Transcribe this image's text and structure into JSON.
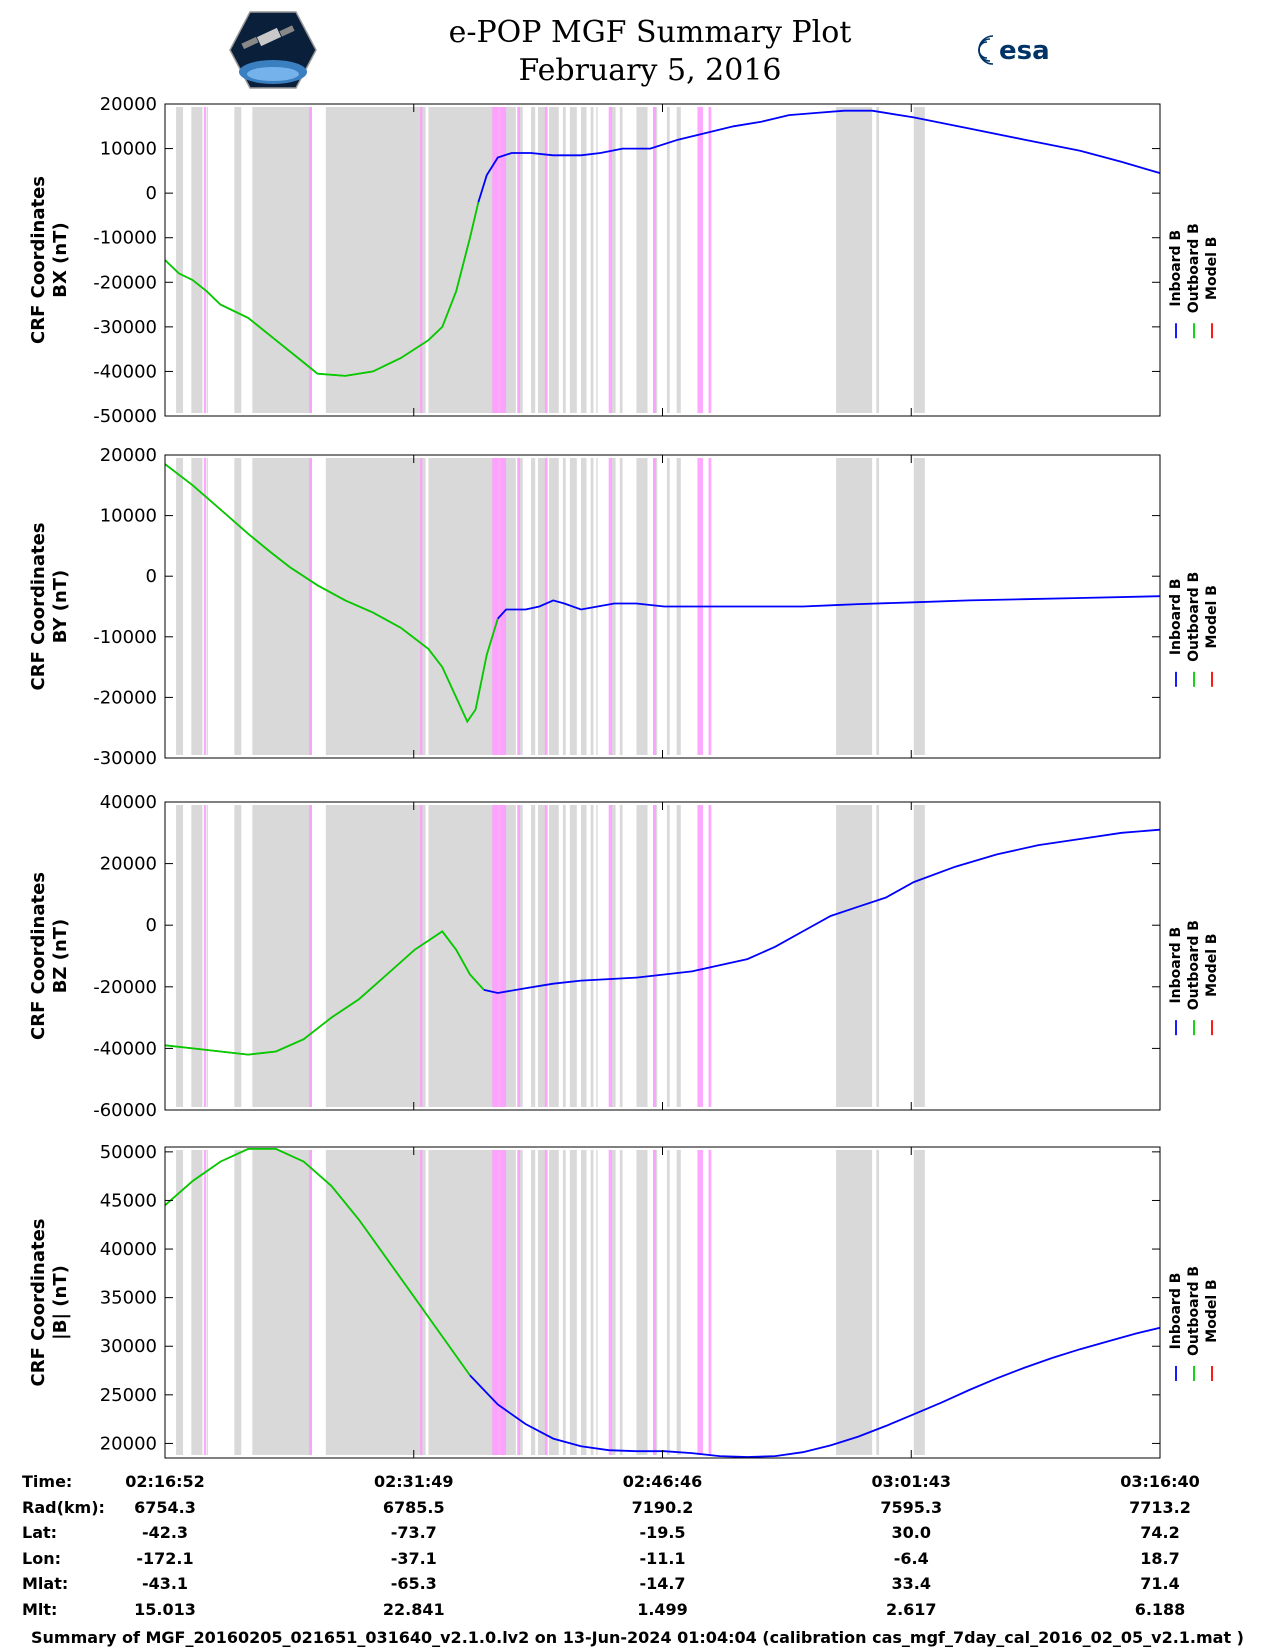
{
  "header": {
    "title_line1": "e-POP MGF Summary Plot",
    "title_line2": "February 5, 2016",
    "left_logo_icon": "epop-satellite-hexagon-icon",
    "right_logo_icon": "esa-logo-icon",
    "right_logo_text": "esa"
  },
  "colors": {
    "inboard": "#0000ff",
    "outboard": "#00cc00",
    "model": "#ff0000",
    "gray_band": "#d9d9d9",
    "pink_band": "#ff99ff"
  },
  "chart_data": [
    {
      "type": "line",
      "ylabel_line1": "CRF Coordinates",
      "ylabel_line2": "BX (nT)",
      "ylim": [
        -50000,
        20000
      ],
      "yticks": [
        20000,
        10000,
        0,
        -10000,
        -20000,
        -30000,
        -40000,
        -50000
      ],
      "xlim": [
        0,
        3588
      ],
      "legend": [
        "Inboard B",
        "Outboard B",
        "Model B"
      ],
      "legend_placement": "right",
      "inboard_from": 1130,
      "points": [
        [
          0,
          -15000
        ],
        [
          50,
          -18000
        ],
        [
          100,
          -19500
        ],
        [
          150,
          -22000
        ],
        [
          200,
          -25000
        ],
        [
          300,
          -28000
        ],
        [
          400,
          -33000
        ],
        [
          500,
          -38000
        ],
        [
          550,
          -40500
        ],
        [
          650,
          -41000
        ],
        [
          750,
          -40000
        ],
        [
          850,
          -37000
        ],
        [
          950,
          -33000
        ],
        [
          1000,
          -30000
        ],
        [
          1050,
          -22000
        ],
        [
          1100,
          -10000
        ],
        [
          1130,
          -2000
        ],
        [
          1160,
          4000
        ],
        [
          1200,
          8000
        ],
        [
          1250,
          9000
        ],
        [
          1320,
          9000
        ],
        [
          1400,
          8500
        ],
        [
          1500,
          8500
        ],
        [
          1570,
          9000
        ],
        [
          1650,
          10000
        ],
        [
          1750,
          10000
        ],
        [
          1850,
          12000
        ],
        [
          1950,
          13500
        ],
        [
          2050,
          15000
        ],
        [
          2150,
          16000
        ],
        [
          2250,
          17500
        ],
        [
          2350,
          18000
        ],
        [
          2450,
          18500
        ],
        [
          2550,
          18500
        ],
        [
          2700,
          17000
        ],
        [
          2900,
          14500
        ],
        [
          3100,
          12000
        ],
        [
          3300,
          9500
        ],
        [
          3450,
          7000
        ],
        [
          3588,
          4500
        ]
      ]
    },
    {
      "type": "line",
      "ylabel_line1": "CRF Coordinates",
      "ylabel_line2": "BY (nT)",
      "ylim": [
        -30000,
        20000
      ],
      "yticks": [
        20000,
        10000,
        0,
        -10000,
        -20000,
        -30000
      ],
      "xlim": [
        0,
        3588
      ],
      "legend": [
        "Inboard B",
        "Outboard B",
        "Model B"
      ],
      "legend_placement": "right",
      "inboard_from": 1200,
      "points": [
        [
          0,
          18500
        ],
        [
          100,
          15000
        ],
        [
          200,
          11000
        ],
        [
          300,
          7000
        ],
        [
          380,
          4000
        ],
        [
          450,
          1500
        ],
        [
          550,
          -1500
        ],
        [
          650,
          -4000
        ],
        [
          750,
          -6000
        ],
        [
          850,
          -8500
        ],
        [
          950,
          -12000
        ],
        [
          1000,
          -15000
        ],
        [
          1050,
          -20000
        ],
        [
          1090,
          -24000
        ],
        [
          1120,
          -22000
        ],
        [
          1160,
          -13000
        ],
        [
          1200,
          -7000
        ],
        [
          1230,
          -5500
        ],
        [
          1300,
          -5500
        ],
        [
          1350,
          -5000
        ],
        [
          1400,
          -4000
        ],
        [
          1440,
          -4500
        ],
        [
          1500,
          -5500
        ],
        [
          1560,
          -5000
        ],
        [
          1620,
          -4500
        ],
        [
          1700,
          -4500
        ],
        [
          1800,
          -5000
        ],
        [
          1900,
          -5000
        ],
        [
          2000,
          -5000
        ],
        [
          2100,
          -5000
        ],
        [
          2200,
          -5000
        ],
        [
          2300,
          -5000
        ],
        [
          2400,
          -4800
        ],
        [
          2500,
          -4600
        ],
        [
          2700,
          -4300
        ],
        [
          2900,
          -4000
        ],
        [
          3100,
          -3800
        ],
        [
          3300,
          -3600
        ],
        [
          3588,
          -3300
        ]
      ]
    },
    {
      "type": "line",
      "ylabel_line1": "CRF Coordinates",
      "ylabel_line2": "BZ (nT)",
      "ylim": [
        -60000,
        40000
      ],
      "yticks": [
        40000,
        20000,
        0,
        -20000,
        -40000,
        -60000
      ],
      "xlim": [
        0,
        3588
      ],
      "legend": [
        "Inboard B",
        "Outboard B",
        "Model B"
      ],
      "legend_placement": "right",
      "inboard_from": 1150,
      "points": [
        [
          0,
          -39000
        ],
        [
          100,
          -40000
        ],
        [
          200,
          -41000
        ],
        [
          300,
          -42000
        ],
        [
          400,
          -41000
        ],
        [
          500,
          -37000
        ],
        [
          600,
          -30000
        ],
        [
          700,
          -24000
        ],
        [
          800,
          -16000
        ],
        [
          900,
          -8000
        ],
        [
          950,
          -5000
        ],
        [
          1000,
          -2000
        ],
        [
          1050,
          -8000
        ],
        [
          1100,
          -16000
        ],
        [
          1150,
          -21000
        ],
        [
          1200,
          -22000
        ],
        [
          1300,
          -20500
        ],
        [
          1400,
          -19000
        ],
        [
          1500,
          -18000
        ],
        [
          1600,
          -17500
        ],
        [
          1700,
          -17000
        ],
        [
          1800,
          -16000
        ],
        [
          1900,
          -15000
        ],
        [
          2000,
          -13000
        ],
        [
          2100,
          -11000
        ],
        [
          2200,
          -7000
        ],
        [
          2300,
          -2000
        ],
        [
          2400,
          3000
        ],
        [
          2500,
          6000
        ],
        [
          2600,
          9000
        ],
        [
          2700,
          14000
        ],
        [
          2850,
          19000
        ],
        [
          3000,
          23000
        ],
        [
          3150,
          26000
        ],
        [
          3300,
          28000
        ],
        [
          3450,
          30000
        ],
        [
          3588,
          31000
        ]
      ]
    },
    {
      "type": "line",
      "ylabel_line1": "CRF Coordinates",
      "ylabel_line2": "|B| (nT)",
      "ylim": [
        18500,
        50500
      ],
      "yticks": [
        50000,
        45000,
        40000,
        35000,
        30000,
        25000,
        20000
      ],
      "xlim": [
        0,
        3588
      ],
      "legend": [
        "Inboard B",
        "Outboard B",
        "Model B"
      ],
      "legend_placement": "right",
      "inboard_from": 1030,
      "points": [
        [
          0,
          44500
        ],
        [
          100,
          47000
        ],
        [
          200,
          49000
        ],
        [
          300,
          50300
        ],
        [
          400,
          50300
        ],
        [
          500,
          49000
        ],
        [
          600,
          46500
        ],
        [
          700,
          43000
        ],
        [
          800,
          39000
        ],
        [
          900,
          35000
        ],
        [
          1000,
          31000
        ],
        [
          1100,
          27000
        ],
        [
          1200,
          24000
        ],
        [
          1300,
          22000
        ],
        [
          1400,
          20500
        ],
        [
          1500,
          19700
        ],
        [
          1600,
          19300
        ],
        [
          1700,
          19200
        ],
        [
          1800,
          19200
        ],
        [
          1900,
          19000
        ],
        [
          2000,
          18700
        ],
        [
          2100,
          18600
        ],
        [
          2200,
          18700
        ],
        [
          2300,
          19100
        ],
        [
          2400,
          19800
        ],
        [
          2500,
          20700
        ],
        [
          2600,
          21800
        ],
        [
          2700,
          23000
        ],
        [
          2800,
          24200
        ],
        [
          2900,
          25500
        ],
        [
          3000,
          26700
        ],
        [
          3100,
          27800
        ],
        [
          3200,
          28800
        ],
        [
          3300,
          29700
        ],
        [
          3400,
          30500
        ],
        [
          3500,
          31300
        ],
        [
          3588,
          31900
        ]
      ]
    }
  ],
  "bands": {
    "gray": [
      [
        40,
        65
      ],
      [
        95,
        135
      ],
      [
        150,
        155
      ],
      [
        250,
        275
      ],
      [
        315,
        530
      ],
      [
        580,
        940
      ],
      [
        950,
        1200
      ],
      [
        1210,
        1265
      ],
      [
        1275,
        1290
      ],
      [
        1320,
        1335
      ],
      [
        1345,
        1375
      ],
      [
        1385,
        1420
      ],
      [
        1435,
        1445
      ],
      [
        1460,
        1485
      ],
      [
        1500,
        1520
      ],
      [
        1535,
        1545
      ],
      [
        1555,
        1560
      ],
      [
        1610,
        1625
      ],
      [
        1640,
        1650
      ],
      [
        1700,
        1740
      ],
      [
        1760,
        1775
      ],
      [
        1810,
        1820
      ],
      [
        1845,
        1860
      ],
      [
        2420,
        2550
      ],
      [
        2565,
        2575
      ],
      [
        2700,
        2740
      ]
    ],
    "pink": [
      [
        140,
        148
      ],
      [
        520,
        530
      ],
      [
        920,
        928
      ],
      [
        1180,
        1230
      ],
      [
        1270,
        1280
      ],
      [
        1370,
        1380
      ],
      [
        1600,
        1612
      ],
      [
        1760,
        1770
      ],
      [
        1920,
        1940
      ],
      [
        1960,
        1970
      ]
    ]
  },
  "time_axis": {
    "tick_positions": [
      0,
      897,
      1794,
      2691,
      3588
    ],
    "rows": [
      {
        "label": "Time:",
        "values": [
          "02:16:52",
          "02:31:49",
          "02:46:46",
          "03:01:43",
          "03:16:40"
        ]
      },
      {
        "label": "Rad(km):",
        "values": [
          "6754.3",
          "6785.5",
          "7190.2",
          "7595.3",
          "7713.2"
        ]
      },
      {
        "label": "Lat:",
        "values": [
          "-42.3",
          "-73.7",
          "-19.5",
          "30.0",
          "74.2"
        ]
      },
      {
        "label": "Lon:",
        "values": [
          "-172.1",
          "-37.1",
          "-11.1",
          "-6.4",
          "18.7"
        ]
      },
      {
        "label": "Mlat:",
        "values": [
          "-43.1",
          "-65.3",
          "-14.7",
          "33.4",
          "71.4"
        ]
      },
      {
        "label": "Mlt:",
        "values": [
          "15.013",
          "22.841",
          "1.499",
          "2.617",
          "6.188"
        ]
      }
    ]
  },
  "footer": "Summary of MGF_20160205_021651_031640_v2.1.0.lv2 on 13-Jun-2024 01:04:04 (calibration cas_mgf_7day_cal_2016_02_05_v2.1.mat )"
}
